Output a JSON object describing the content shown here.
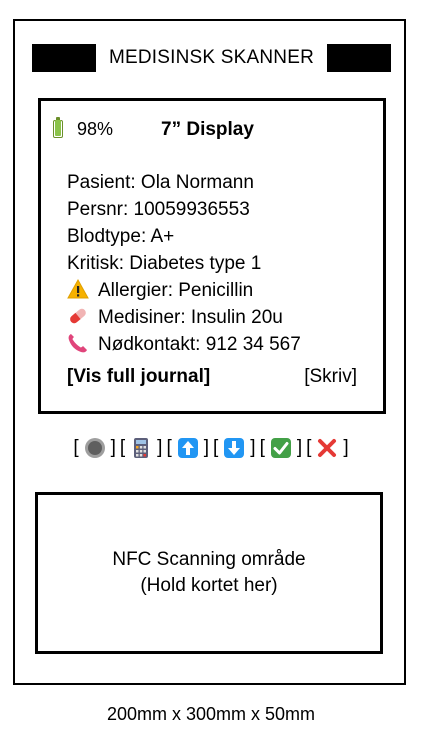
{
  "device": {
    "title": "MEDISINSK SKANNER",
    "display_label": "7” Display",
    "battery": {
      "percent_text": "98%",
      "level": 0.98,
      "icon": "battery-icon",
      "color": "#8bc34a"
    }
  },
  "patient": {
    "name_line": "Pasient: Ola Normann",
    "persnr_line": "Persnr: 10059936553",
    "blood_line": "Blodtype: A+",
    "critical_line": "Kritisk: Diabetes type 1",
    "allergy_line": "Allergier: Penicillin",
    "medication_line": "Medisiner: Insulin 20u",
    "contact_line": "Nødkontakt: 912 34 567"
  },
  "actions": {
    "full_journal": "[Vis full journal]",
    "write": "[Skriv]"
  },
  "buttons": [
    {
      "icon": "record-button-icon"
    },
    {
      "icon": "calculator-icon"
    },
    {
      "icon": "up-arrow-icon"
    },
    {
      "icon": "down-arrow-icon"
    },
    {
      "icon": "check-mark-icon"
    },
    {
      "icon": "cross-mark-icon"
    }
  ],
  "bracket_open": "[",
  "bracket_close": "]",
  "nfc": {
    "line1": "NFC Scanning område",
    "line2": "(Hold kortet her)"
  },
  "dimensions": "200mm x 300mm x 50mm"
}
